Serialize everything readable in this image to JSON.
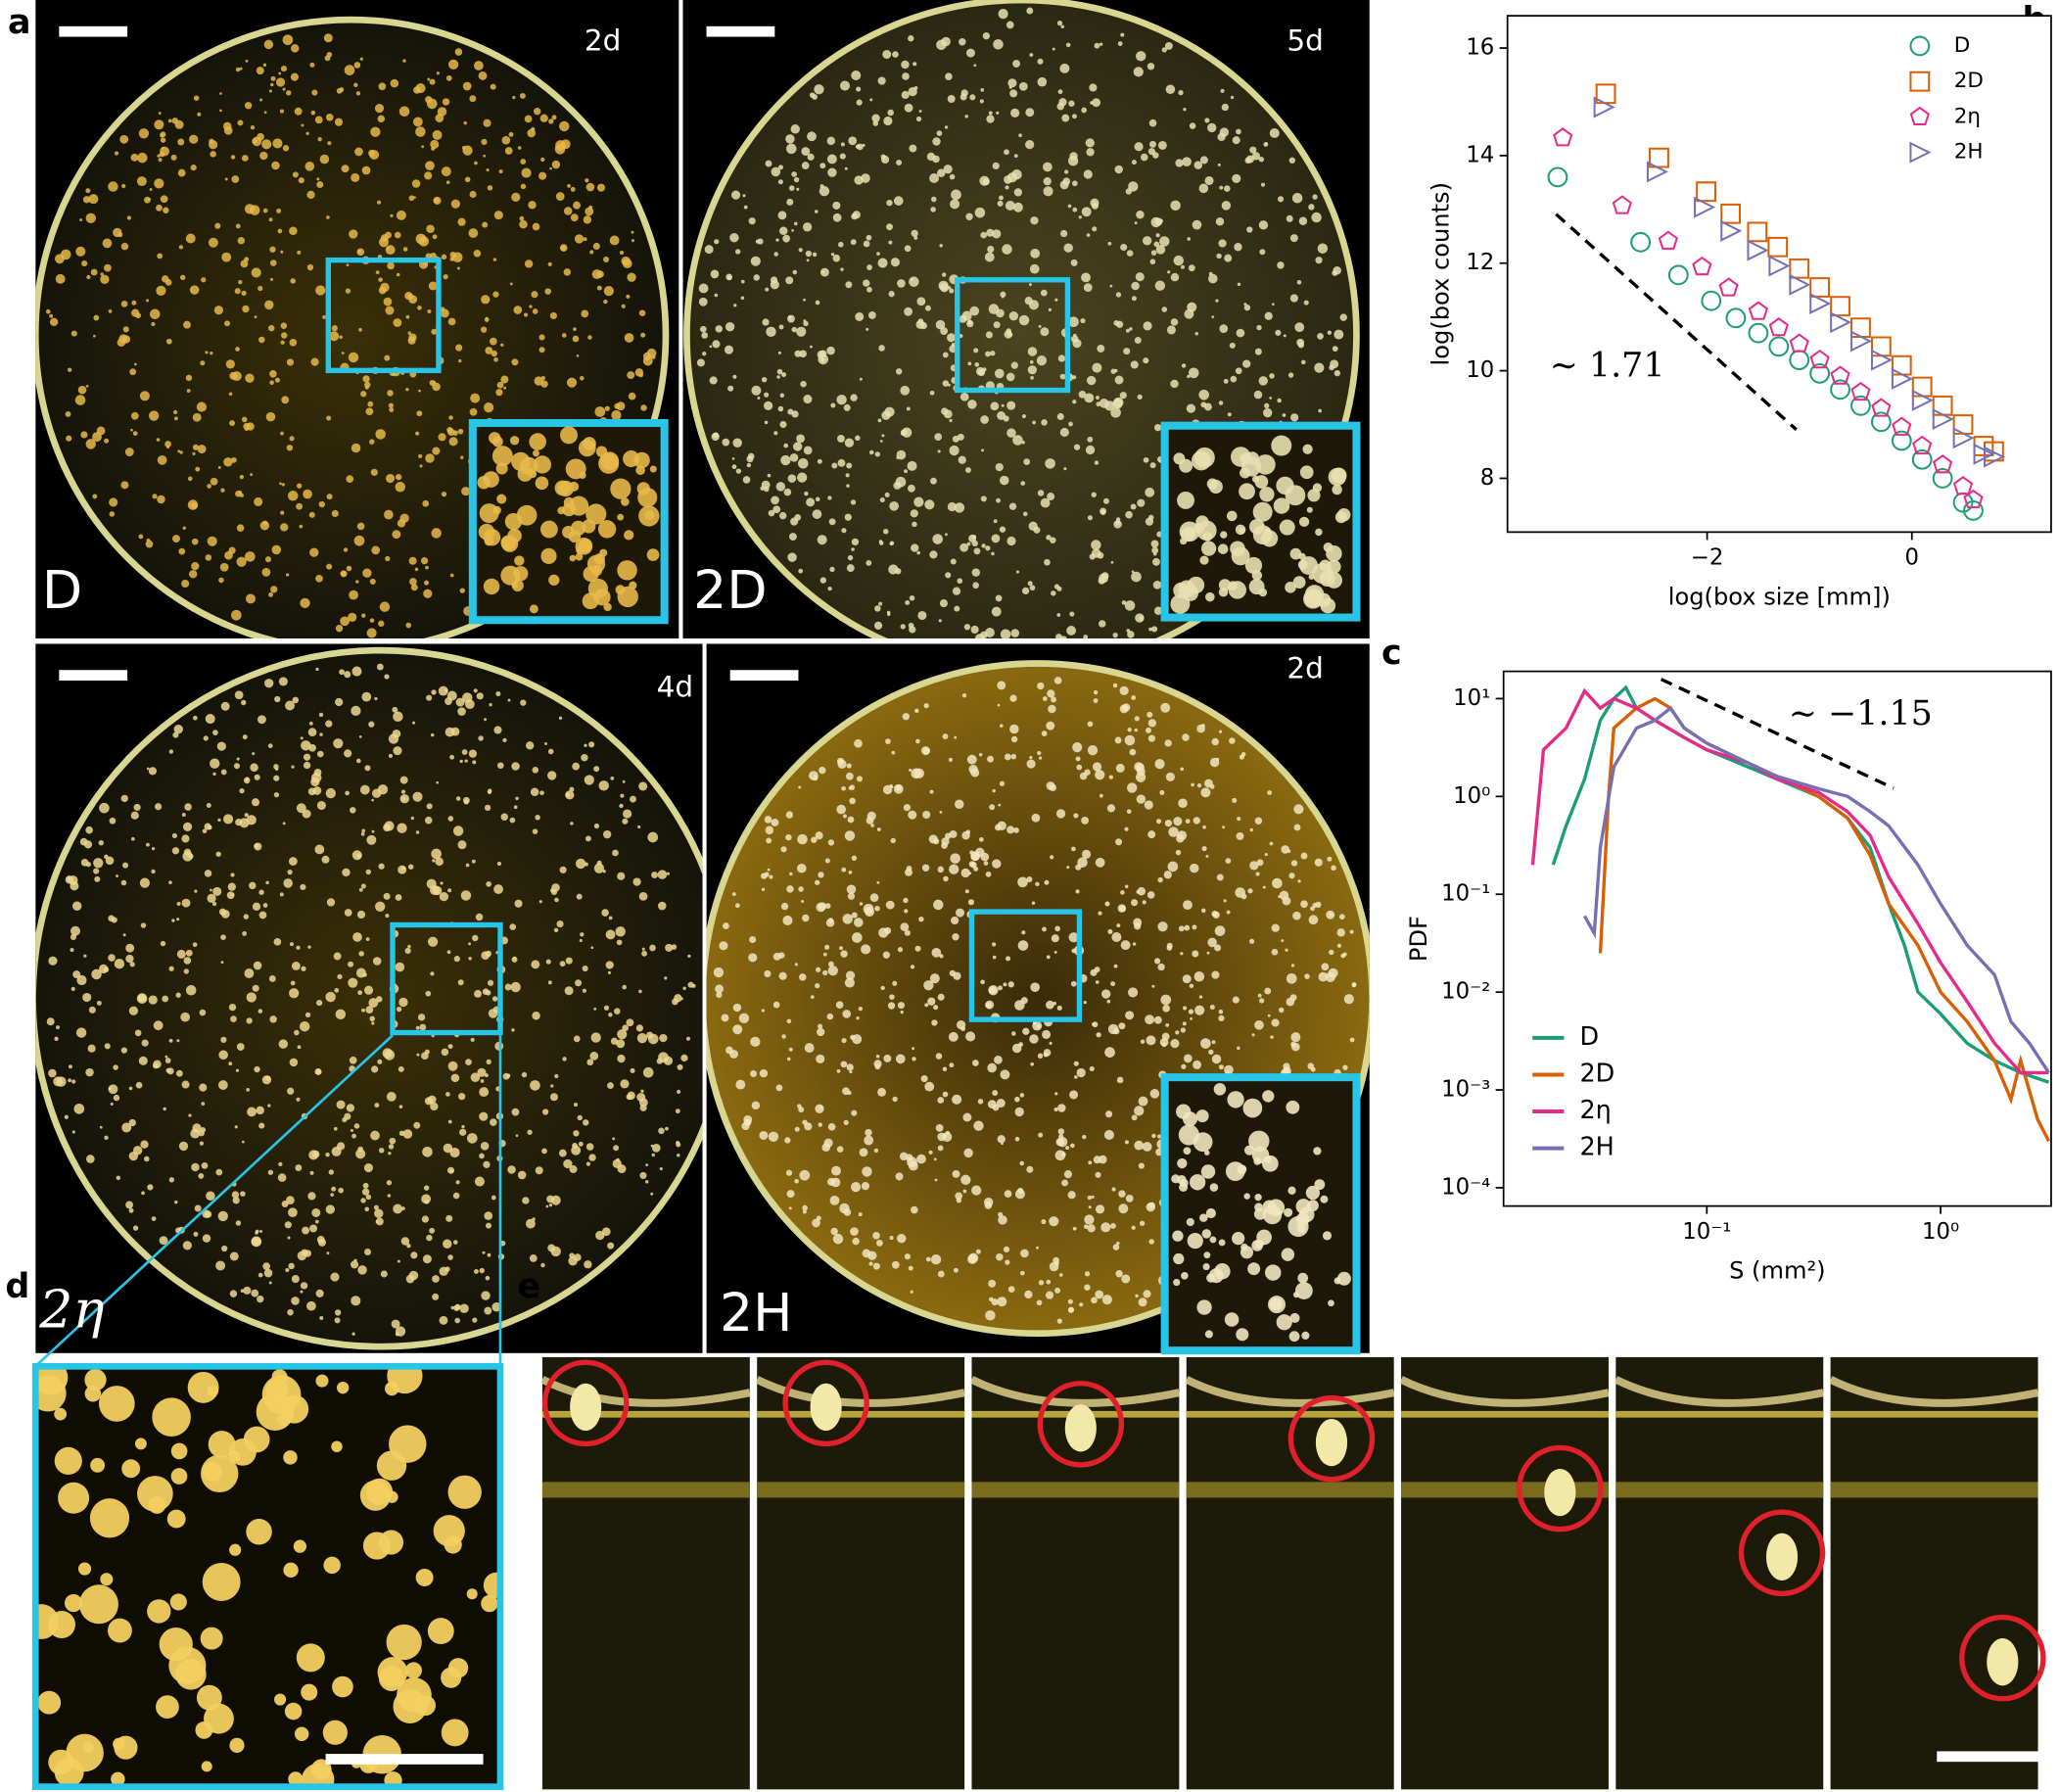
{
  "panel_labels": [
    "a",
    "b",
    "c",
    "d",
    "e"
  ],
  "plates": [
    {
      "label": "D",
      "age": "2d"
    },
    {
      "label": "2D",
      "age": "5d"
    },
    {
      "label": "2η",
      "age": "4d"
    },
    {
      "label": "2H",
      "age": "2d"
    }
  ],
  "chart_data": [
    {
      "type": "scatter",
      "xlabel": "log(box size [mm])",
      "ylabel": "log(box counts)",
      "annotation": "∼ 1.71",
      "xlim": [
        -3.95,
        1.36
      ],
      "ylim": [
        7.0,
        16.6
      ],
      "xticks": [
        {
          "value": -2,
          "label": "−2"
        },
        0
      ],
      "yticks": [
        8,
        10,
        12,
        14,
        16
      ],
      "legend": "upper right",
      "series": [
        {
          "name": "D",
          "color": "#1b9e77",
          "marker": "circle",
          "x": [
            -3.46,
            -2.65,
            -2.28,
            -1.96,
            -1.72,
            -1.5,
            -1.3,
            -1.1,
            -0.9,
            -0.7,
            -0.5,
            -0.3,
            -0.1,
            0.1,
            0.3,
            0.5,
            0.6
          ],
          "values": [
            13.6,
            12.39,
            11.78,
            11.3,
            10.98,
            10.7,
            10.45,
            10.2,
            9.95,
            9.65,
            9.35,
            9.05,
            8.7,
            8.35,
            8.0,
            7.55,
            7.4
          ]
        },
        {
          "name": "2D",
          "color": "#d95f02",
          "marker": "square",
          "x": [
            -2.99,
            -2.47,
            -2.01,
            -1.77,
            -1.51,
            -1.31,
            -1.1,
            -0.9,
            -0.7,
            -0.5,
            -0.3,
            -0.1,
            0.1,
            0.3,
            0.5,
            0.7,
            0.8
          ],
          "values": [
            15.15,
            13.96,
            13.33,
            12.92,
            12.58,
            12.3,
            11.9,
            11.55,
            11.2,
            10.8,
            10.45,
            10.1,
            9.7,
            9.35,
            9.0,
            8.6,
            8.5
          ]
        },
        {
          "name": "2η",
          "color": "#e7298a",
          "marker": "pentagon",
          "x": [
            -3.41,
            -2.83,
            -2.38,
            -2.05,
            -1.79,
            -1.5,
            -1.3,
            -1.1,
            -0.9,
            -0.7,
            -0.5,
            -0.3,
            -0.1,
            0.1,
            0.3,
            0.5,
            0.6
          ],
          "values": [
            14.33,
            13.07,
            12.41,
            11.93,
            11.54,
            11.1,
            10.8,
            10.5,
            10.2,
            9.9,
            9.6,
            9.3,
            8.95,
            8.6,
            8.25,
            7.85,
            7.6
          ]
        },
        {
          "name": "2H",
          "color": "#7570b3",
          "marker": "triangle",
          "x": [
            -3.01,
            -2.49,
            -2.03,
            -1.77,
            -1.51,
            -1.3,
            -1.1,
            -0.9,
            -0.7,
            -0.5,
            -0.3,
            -0.1,
            0.1,
            0.3,
            0.5,
            0.7,
            0.8
          ],
          "values": [
            14.9,
            13.7,
            13.04,
            12.6,
            12.24,
            11.95,
            11.6,
            11.25,
            10.9,
            10.55,
            10.2,
            9.85,
            9.45,
            9.1,
            8.75,
            8.45,
            8.4
          ]
        }
      ]
    },
    {
      "type": "line",
      "xlabel": "S (mm²)",
      "ylabel": "PDF",
      "annotation": "∼ −1.15",
      "log_x": true,
      "log_y": true,
      "xlim": [
        0.0135,
        2.97
      ],
      "ylim": [
        6.5e-05,
        19
      ],
      "xticks": [
        {
          "value": 0.1,
          "label": "10⁻¹"
        },
        {
          "value": 1,
          "label": "10⁰"
        }
      ],
      "yticks": [
        {
          "value": 10,
          "label": "10¹"
        },
        {
          "value": 1,
          "label": "10⁰"
        },
        {
          "value": 0.1,
          "label": "10⁻¹"
        },
        {
          "value": 0.01,
          "label": "10⁻²"
        },
        {
          "value": 0.001,
          "label": "10⁻³"
        },
        {
          "value": 0.0001,
          "label": "10⁻⁴"
        }
      ],
      "legend": "lower left",
      "series": [
        {
          "name": "D",
          "color": "#1b9e77",
          "x": [
            0.022,
            0.025,
            0.03,
            0.035,
            0.04,
            0.045,
            0.05,
            0.06,
            0.08,
            0.1,
            0.15,
            0.2,
            0.3,
            0.4,
            0.5,
            0.6,
            0.7,
            0.8,
            1.0,
            1.3,
            1.7,
            2.2,
            2.9
          ],
          "values": [
            0.2,
            0.5,
            1.5,
            6,
            10,
            13,
            8,
            6,
            4,
            3,
            2,
            1.5,
            1.0,
            0.6,
            0.3,
            0.08,
            0.03,
            0.01,
            0.006,
            0.003,
            0.002,
            0.0015,
            0.0012
          ]
        },
        {
          "name": "2D",
          "color": "#d95f02",
          "x": [
            0.035,
            0.038,
            0.04,
            0.05,
            0.06,
            0.07,
            0.08,
            0.1,
            0.15,
            0.2,
            0.3,
            0.4,
            0.5,
            0.6,
            0.8,
            1.0,
            1.3,
            1.7,
            2.0,
            2.2,
            2.6,
            2.9
          ],
          "values": [
            0.025,
            1,
            5,
            8,
            10,
            8,
            5,
            3.5,
            2.2,
            1.6,
            1.0,
            0.6,
            0.25,
            0.08,
            0.03,
            0.01,
            0.005,
            0.002,
            0.0008,
            0.002,
            0.0005,
            0.0003
          ]
        },
        {
          "name": "2η",
          "color": "#e7298a",
          "x": [
            0.018,
            0.02,
            0.025,
            0.03,
            0.035,
            0.04,
            0.05,
            0.06,
            0.08,
            0.1,
            0.15,
            0.2,
            0.3,
            0.4,
            0.5,
            0.6,
            0.8,
            1.0,
            1.3,
            1.7,
            2.2,
            2.9
          ],
          "values": [
            0.2,
            3,
            5,
            12,
            8,
            10,
            8,
            6,
            4,
            3,
            2.2,
            1.5,
            1.1,
            0.7,
            0.4,
            0.15,
            0.05,
            0.02,
            0.008,
            0.003,
            0.0015,
            0.0015
          ]
        },
        {
          "name": "2H",
          "color": "#7570b3",
          "x": [
            0.03,
            0.033,
            0.035,
            0.04,
            0.05,
            0.06,
            0.07,
            0.08,
            0.1,
            0.15,
            0.2,
            0.3,
            0.4,
            0.5,
            0.6,
            0.8,
            1.0,
            1.3,
            1.7,
            2.0,
            2.4,
            2.9
          ],
          "values": [
            0.06,
            0.04,
            0.3,
            2,
            5,
            6,
            8,
            5,
            3.5,
            2.2,
            1.6,
            1.2,
            1.0,
            0.7,
            0.5,
            0.2,
            0.08,
            0.03,
            0.015,
            0.005,
            0.003,
            0.0015
          ]
        }
      ]
    }
  ]
}
